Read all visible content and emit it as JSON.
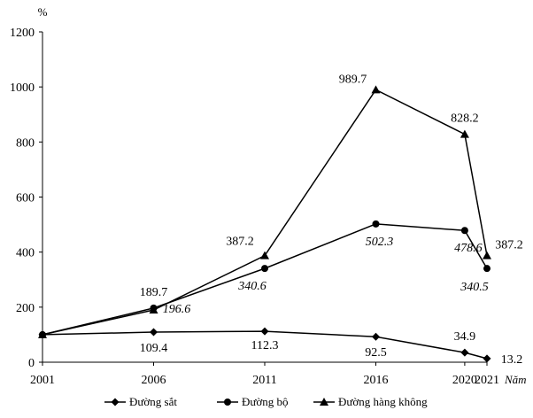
{
  "chart_data": {
    "type": "line",
    "title": "",
    "ylabel": "%",
    "xlabel": "Năm",
    "x": [
      "2001",
      "2006",
      "2011",
      "2016",
      "2020",
      "2021"
    ],
    "ylim": [
      0,
      1200
    ],
    "yticks": [
      0,
      200,
      400,
      600,
      800,
      1000,
      1200
    ],
    "grid": false,
    "legend_position": "bottom",
    "series": [
      {
        "name": "Đường sắt",
        "marker": "diamond",
        "values": [
          100,
          109.4,
          112.3,
          92.5,
          34.9,
          13.2
        ],
        "labels": [
          "",
          "109.4",
          "112.3",
          "92.5",
          "34.9",
          "13.2"
        ],
        "label_style": "normal"
      },
      {
        "name": "Đường bộ",
        "marker": "circle",
        "values": [
          100,
          196.6,
          340.6,
          502.3,
          478.6,
          340.5
        ],
        "labels": [
          "",
          "196.6",
          "340.6",
          "502.3",
          "478.6",
          "340.5"
        ],
        "label_style": "italic"
      },
      {
        "name": "Đường hàng không",
        "marker": "triangle",
        "values": [
          100,
          189.7,
          387.2,
          989.7,
          828.2,
          387.2
        ],
        "labels": [
          "",
          "189.7",
          "387.2",
          "989.7",
          "828.2",
          "387.2"
        ],
        "label_style": "normal"
      }
    ]
  }
}
